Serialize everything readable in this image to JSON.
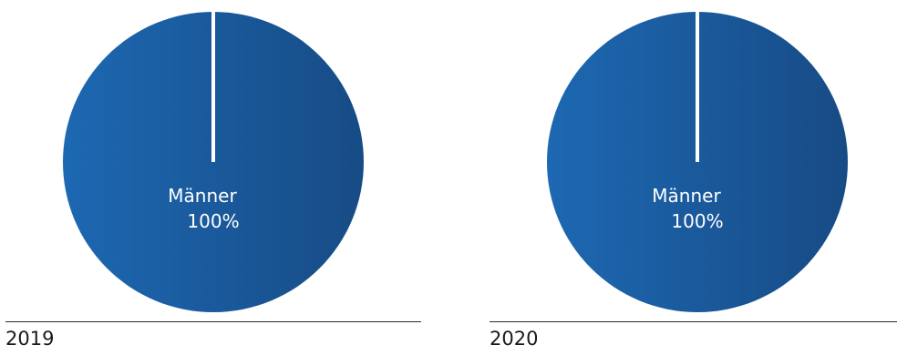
{
  "chart_data": [
    {
      "type": "pie",
      "title": "2019",
      "slices": [
        {
          "label": "Männer",
          "value": 100,
          "value_label": "100%",
          "color": "#1f5fa0"
        }
      ],
      "gradient": [
        "#1d68b2",
        "#174b85"
      ],
      "divider_color": "#ffffff"
    },
    {
      "type": "pie",
      "title": "2020",
      "slices": [
        {
          "label": "Männer",
          "value": 100,
          "value_label": "100%",
          "color": "#1f5fa0"
        }
      ],
      "gradient": [
        "#1d68b2",
        "#174b85"
      ],
      "divider_color": "#ffffff"
    }
  ]
}
